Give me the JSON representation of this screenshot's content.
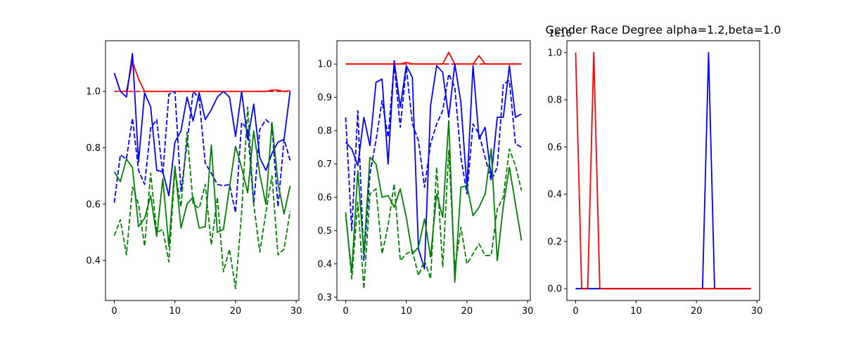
{
  "chart_data": [
    {
      "type": "line",
      "title": "",
      "xlabel": "",
      "ylabel": "",
      "xlim": [
        -1.45,
        30.45
      ],
      "ylim": [
        0.258,
        1.18
      ],
      "xticks": [
        0,
        10,
        20,
        30
      ],
      "xtick_labels": [
        "0",
        "10",
        "20",
        "30"
      ],
      "yticks": [
        0.4,
        0.6,
        0.8,
        1.0
      ],
      "ytick_labels": [
        "0.4",
        "0.6",
        "0.8",
        "1.0"
      ],
      "grid": false,
      "x": [
        0,
        1,
        2,
        3,
        4,
        5,
        6,
        7,
        8,
        9,
        10,
        11,
        12,
        13,
        14,
        15,
        16,
        17,
        18,
        19,
        20,
        21,
        22,
        23,
        24,
        25,
        26,
        27,
        28,
        29
      ],
      "series": [
        {
          "color": "#ff0000",
          "dash": "solid",
          "values": [
            1.065,
            1.0,
            1.0,
            1.105,
            1.045,
            1.0,
            1.0,
            1.0,
            1.0,
            1.0,
            1.0,
            1.0,
            1.0,
            1.0,
            1.0,
            1.0,
            1.0,
            1.0,
            1.0,
            1.0,
            1.0,
            1.0,
            1.0,
            1.0,
            1.0,
            1.0,
            1.005,
            1.005,
            1.0,
            1.003
          ]
        },
        {
          "color": "#ff0000",
          "dash": "dashed",
          "values": [
            1.0,
            1.0,
            1.0,
            1.0,
            1.0,
            1.0,
            1.0,
            1.0,
            1.0,
            1.0,
            1.0,
            1.0,
            1.0,
            1.0,
            1.0,
            1.0,
            1.0,
            1.0,
            1.0,
            1.0,
            1.0,
            1.0,
            1.0,
            1.0,
            1.0,
            1.0,
            1.0,
            1.0,
            1.0,
            1.0
          ]
        },
        {
          "color": "#0000ff",
          "dash": "solid",
          "values": [
            1.065,
            1.0,
            0.98,
            1.135,
            0.75,
            0.995,
            0.945,
            0.72,
            0.715,
            0.63,
            0.82,
            0.86,
            0.98,
            0.895,
            0.995,
            0.9,
            0.935,
            0.98,
            1.0,
            0.98,
            0.84,
            1.0,
            0.83,
            0.955,
            0.765,
            0.72,
            0.78,
            0.82,
            0.83,
            1.0
          ]
        },
        {
          "color": "#0000ff",
          "dash": "dashed",
          "values": [
            0.605,
            0.775,
            0.76,
            0.905,
            0.72,
            0.67,
            0.87,
            0.9,
            0.705,
            0.99,
            1.0,
            0.645,
            0.815,
            1.0,
            0.975,
            0.745,
            0.71,
            0.67,
            0.665,
            0.67,
            0.57,
            0.89,
            0.865,
            0.6,
            0.865,
            0.9,
            0.88,
            0.59,
            0.83,
            0.755
          ]
        },
        {
          "color": "#008000",
          "dash": "solid",
          "values": [
            0.715,
            0.68,
            0.76,
            0.73,
            0.52,
            0.55,
            0.63,
            0.485,
            0.69,
            0.45,
            0.735,
            0.515,
            0.6,
            0.625,
            0.515,
            0.52,
            0.81,
            0.5,
            0.51,
            0.66,
            0.805,
            0.73,
            0.64,
            0.86,
            0.705,
            0.6,
            0.89,
            0.675,
            0.565,
            0.665
          ]
        },
        {
          "color": "#008000",
          "dash": "dashed",
          "values": [
            0.488,
            0.545,
            0.42,
            0.66,
            0.6,
            0.45,
            0.71,
            0.5,
            0.51,
            0.395,
            0.72,
            0.59,
            0.855,
            0.6,
            0.585,
            0.67,
            0.455,
            0.625,
            0.36,
            0.44,
            0.3,
            0.57,
            0.945,
            0.6,
            0.43,
            0.57,
            0.7,
            0.42,
            0.44,
            0.575
          ]
        }
      ]
    },
    {
      "type": "line",
      "title": "",
      "xlabel": "",
      "ylabel": "",
      "xlim": [
        -1.45,
        30.45
      ],
      "ylim": [
        0.29,
        1.07
      ],
      "xticks": [
        0,
        10,
        20,
        30
      ],
      "xtick_labels": [
        "0",
        "10",
        "20",
        "30"
      ],
      "yticks": [
        0.3,
        0.4,
        0.5,
        0.6,
        0.7,
        0.8,
        0.9,
        1.0
      ],
      "ytick_labels": [
        "0.3",
        "0.4",
        "0.5",
        "0.6",
        "0.7",
        "0.8",
        "0.9",
        "1.0"
      ],
      "grid": false,
      "x": [
        0,
        1,
        2,
        3,
        4,
        5,
        6,
        7,
        8,
        9,
        10,
        11,
        12,
        13,
        14,
        15,
        16,
        17,
        18,
        19,
        20,
        21,
        22,
        23,
        24,
        25,
        26,
        27,
        28,
        29
      ],
      "series": [
        {
          "color": "#ff0000",
          "dash": "solid",
          "values": [
            1.0,
            1.0,
            1.0,
            1.0,
            1.0,
            1.0,
            1.0,
            1.0,
            1.0,
            1.0,
            1.005,
            1.0,
            1.0,
            1.0,
            1.0,
            1.0,
            1.0,
            1.035,
            1.0,
            1.0,
            1.0,
            1.0,
            1.025,
            1.0,
            1.0,
            1.0,
            1.0,
            1.0,
            1.0,
            1.0
          ]
        },
        {
          "color": "#ff0000",
          "dash": "dashed",
          "values": [
            1.0,
            1.0,
            1.0,
            1.0,
            1.0,
            1.0,
            1.0,
            1.0,
            1.0,
            1.0,
            1.0,
            1.0,
            1.0,
            1.0,
            1.0,
            1.0,
            1.0,
            1.0,
            1.0,
            1.0,
            1.0,
            1.0,
            1.0,
            1.0,
            1.0,
            1.0,
            1.0,
            1.0,
            1.0,
            1.0
          ]
        },
        {
          "color": "#0000ff",
          "dash": "solid",
          "values": [
            0.765,
            0.745,
            0.695,
            0.84,
            0.755,
            0.945,
            0.955,
            0.7,
            1.01,
            0.87,
            0.995,
            0.96,
            0.445,
            0.385,
            0.875,
            0.995,
            0.975,
            0.84,
            1.0,
            0.885,
            0.63,
            0.995,
            0.775,
            0.81,
            0.66,
            0.84,
            0.84,
            0.995,
            0.84,
            0.85
          ]
        },
        {
          "color": "#0000ff",
          "dash": "dashed",
          "values": [
            0.84,
            0.5,
            0.86,
            0.41,
            0.67,
            0.77,
            0.89,
            0.78,
            1.0,
            0.81,
            0.99,
            0.82,
            0.77,
            0.63,
            0.76,
            0.82,
            0.86,
            0.97,
            0.93,
            0.72,
            0.61,
            0.82,
            0.79,
            0.72,
            0.65,
            0.69,
            0.94,
            0.95,
            0.76,
            0.75
          ]
        },
        {
          "color": "#008000",
          "dash": "solid",
          "values": [
            0.545,
            0.375,
            0.68,
            0.43,
            0.72,
            0.7,
            0.6,
            0.605,
            0.57,
            0.625,
            0.54,
            0.43,
            0.45,
            0.535,
            0.42,
            0.61,
            0.54,
            0.83,
            0.345,
            0.63,
            0.635,
            0.545,
            0.57,
            0.61,
            0.745,
            0.41,
            0.575,
            0.69,
            0.58,
            0.47
          ]
        },
        {
          "color": "#008000",
          "dash": "dashed",
          "values": [
            0.555,
            0.355,
            0.585,
            0.325,
            0.61,
            0.625,
            0.43,
            0.515,
            0.64,
            0.41,
            0.43,
            0.44,
            0.365,
            0.41,
            0.355,
            0.69,
            0.39,
            0.74,
            0.385,
            0.51,
            0.4,
            0.43,
            0.46,
            0.425,
            0.425,
            0.565,
            0.6,
            0.745,
            0.695,
            0.62
          ]
        }
      ]
    },
    {
      "type": "line",
      "title": "Gender Race Degree alpha=1.2,beta=1.0",
      "xlabel": "",
      "ylabel": "",
      "offset_text": "1e16",
      "xlim": [
        -1.45,
        30.45
      ],
      "ylim": [
        -0.05,
        1.05
      ],
      "xticks": [
        0,
        10,
        20,
        30
      ],
      "xtick_labels": [
        "0",
        "10",
        "20",
        "30"
      ],
      "yticks": [
        0.0,
        0.2,
        0.4,
        0.6,
        0.8,
        1.0
      ],
      "ytick_labels": [
        "0.0",
        "0.2",
        "0.4",
        "0.6",
        "0.8",
        "1.0"
      ],
      "grid": false,
      "x": [
        0,
        1,
        2,
        3,
        4,
        5,
        6,
        7,
        8,
        9,
        10,
        11,
        12,
        13,
        14,
        15,
        16,
        17,
        18,
        19,
        20,
        21,
        22,
        23,
        24,
        25,
        26,
        27,
        28,
        29
      ],
      "series": [
        {
          "color": "#008000",
          "dash": "solid",
          "values": [
            0,
            0,
            0,
            0,
            0,
            0,
            0,
            0,
            0,
            0,
            0,
            0,
            0,
            0,
            0,
            0,
            0,
            0,
            0,
            0,
            0,
            0,
            0,
            0,
            0,
            0,
            0,
            0,
            0,
            0
          ]
        },
        {
          "color": "#0000ff",
          "dash": "solid",
          "values": [
            0,
            0,
            0,
            0,
            0,
            0,
            0,
            0,
            0,
            0,
            0,
            0,
            0,
            0,
            0,
            0,
            0,
            0,
            0,
            0,
            0,
            0,
            1.0,
            0,
            0,
            0,
            0,
            0,
            0,
            0
          ]
        },
        {
          "color": "#ff0000",
          "dash": "solid",
          "values": [
            1.0,
            0,
            0,
            1.0,
            0,
            0,
            0,
            0,
            0,
            0,
            0,
            0,
            0,
            0,
            0,
            0,
            0,
            0,
            0,
            0,
            0,
            0,
            0,
            0,
            0,
            0,
            0,
            0,
            0,
            0
          ]
        }
      ]
    }
  ]
}
